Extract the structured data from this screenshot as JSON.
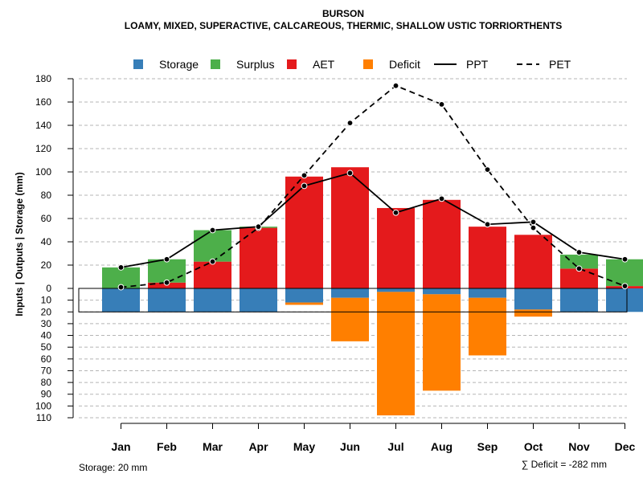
{
  "chart_data": {
    "type": "bar",
    "title": "BURSON",
    "subtitle": "LOAMY, MIXED, SUPERACTIVE, CALCAREOUS, THERMIC, SHALLOW USTIC TORRIORTHENTS",
    "ylabel": "Inputs | Outputs | Storage    (mm)",
    "footer_left": "Storage: 20 mm",
    "footer_right": "∑ Deficit = -282 mm",
    "categories": [
      "Jan",
      "Feb",
      "Mar",
      "Apr",
      "May",
      "Jun",
      "Jul",
      "Aug",
      "Sep",
      "Oct",
      "Nov",
      "Dec"
    ],
    "upper_ylim": [
      0,
      180
    ],
    "upper_ticks": [
      "0",
      "20",
      "40",
      "60",
      "80",
      "100",
      "120",
      "140",
      "160",
      "180"
    ],
    "lower_ylim": [
      0,
      110
    ],
    "lower_ticks": [
      "10",
      "20",
      "30",
      "40",
      "50",
      "60",
      "70",
      "80",
      "90",
      "100",
      "110"
    ],
    "grid": true,
    "legend_position": "top",
    "colors": {
      "storage": "#377EB8",
      "surplus": "#4DAF4A",
      "aet": "#E41A1C",
      "deficit": "#FF7F00",
      "grid": "#B5B5B5",
      "line": "#000000"
    },
    "legend": [
      {
        "key": "storage",
        "label": "Storage",
        "kind": "box"
      },
      {
        "key": "surplus",
        "label": "Surplus",
        "kind": "box"
      },
      {
        "key": "aet",
        "label": "AET",
        "kind": "box"
      },
      {
        "key": "deficit",
        "label": "Deficit",
        "kind": "box"
      },
      {
        "key": "ppt",
        "label": "PPT",
        "kind": "solid"
      },
      {
        "key": "pet",
        "label": "PET",
        "kind": "dashed"
      }
    ],
    "series": [
      {
        "name": "AET",
        "values": [
          0,
          5,
          23,
          52,
          96,
          104,
          69,
          76,
          53,
          46,
          17,
          2
        ]
      },
      {
        "name": "Surplus",
        "values": [
          18,
          20,
          27,
          1,
          0,
          0,
          0,
          0,
          0,
          0,
          12,
          23
        ]
      },
      {
        "name": "Storage",
        "values": [
          20,
          20,
          20,
          20,
          12,
          8,
          3,
          5,
          8,
          18,
          20,
          20
        ]
      },
      {
        "name": "Deficit",
        "values": [
          0,
          0,
          0,
          0,
          2,
          37,
          105,
          82,
          49,
          6,
          0,
          0
        ]
      },
      {
        "name": "PPT",
        "values": [
          18,
          25,
          50,
          53,
          88,
          99,
          65,
          77,
          55,
          57,
          31,
          25
        ]
      },
      {
        "name": "PET",
        "values": [
          1,
          5,
          23,
          52,
          97,
          142,
          174,
          158,
          102,
          52,
          17,
          2
        ]
      }
    ]
  }
}
